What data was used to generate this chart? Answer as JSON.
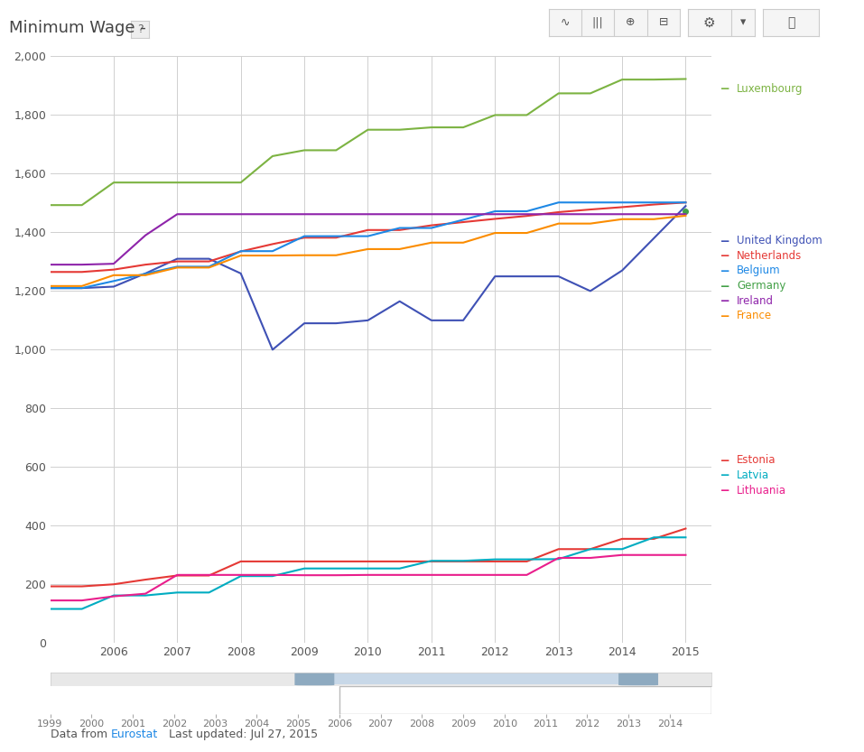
{
  "background_color": "#ffffff",
  "grid_color": "#d0d0d0",
  "ylim": [
    0,
    2000
  ],
  "yticks": [
    0,
    200,
    400,
    600,
    800,
    1000,
    1200,
    1400,
    1600,
    1800,
    2000
  ],
  "xtick_main": [
    2006,
    2007,
    2008,
    2009,
    2010,
    2011,
    2012,
    2013,
    2014,
    2015
  ],
  "xtick_full": [
    1999,
    2000,
    2001,
    2002,
    2003,
    2004,
    2005,
    2006,
    2007,
    2008,
    2009,
    2010,
    2011,
    2012,
    2013,
    2014
  ],
  "title": "Minimum Wage - ",
  "series": [
    {
      "name": "Luxembourg",
      "color": "#7cb342",
      "x": [
        2005.0,
        2005.5,
        2006.0,
        2006.5,
        2007.0,
        2007.5,
        2008.0,
        2008.5,
        2009.0,
        2009.5,
        2010.0,
        2010.5,
        2011.0,
        2011.5,
        2012.0,
        2012.5,
        2013.0,
        2013.5,
        2014.0,
        2014.5,
        2015.0
      ],
      "y": [
        1493,
        1493,
        1570,
        1570,
        1570,
        1570,
        1570,
        1660,
        1680,
        1680,
        1750,
        1750,
        1758,
        1758,
        1800,
        1800,
        1874,
        1874,
        1921,
        1921,
        1923
      ]
    },
    {
      "name": "United Kingdom",
      "color": "#3f51b5",
      "x": [
        2005.0,
        2005.5,
        2006.0,
        2006.5,
        2007.0,
        2007.5,
        2008.0,
        2008.5,
        2009.0,
        2009.5,
        2010.0,
        2010.5,
        2011.0,
        2011.5,
        2012.0,
        2012.5,
        2013.0,
        2013.5,
        2014.0,
        2014.5,
        2015.0
      ],
      "y": [
        1210,
        1210,
        1215,
        1260,
        1310,
        1310,
        1260,
        1000,
        1090,
        1090,
        1100,
        1165,
        1100,
        1100,
        1250,
        1250,
        1250,
        1200,
        1270,
        1380,
        1490
      ]
    },
    {
      "name": "Netherlands",
      "color": "#e53935",
      "x": [
        2005.0,
        2005.5,
        2006.0,
        2006.5,
        2007.0,
        2007.5,
        2008.0,
        2008.5,
        2009.0,
        2009.5,
        2010.0,
        2010.5,
        2011.0,
        2011.5,
        2012.0,
        2012.5,
        2013.0,
        2013.5,
        2014.0,
        2014.5,
        2015.0
      ],
      "y": [
        1265,
        1265,
        1273,
        1290,
        1301,
        1301,
        1335,
        1360,
        1382,
        1382,
        1408,
        1408,
        1424,
        1435,
        1446,
        1456,
        1469,
        1478,
        1486,
        1495,
        1502
      ]
    },
    {
      "name": "Belgium",
      "color": "#1e88e5",
      "x": [
        2005.0,
        2005.5,
        2006.0,
        2006.5,
        2007.0,
        2007.5,
        2008.0,
        2008.5,
        2009.0,
        2009.5,
        2010.0,
        2010.5,
        2011.0,
        2011.5,
        2012.0,
        2012.5,
        2013.0,
        2013.5,
        2014.0,
        2014.5,
        2015.0
      ],
      "y": [
        1210,
        1210,
        1234,
        1259,
        1283,
        1283,
        1336,
        1336,
        1387,
        1387,
        1387,
        1415,
        1415,
        1443,
        1472,
        1472,
        1502,
        1502,
        1502,
        1502,
        1502
      ]
    },
    {
      "name": "Germany",
      "color": "#43a047",
      "x": [
        2015.0
      ],
      "y": [
        1473
      ]
    },
    {
      "name": "Ireland",
      "color": "#8e24aa",
      "x": [
        2005.0,
        2005.5,
        2006.0,
        2006.5,
        2007.0,
        2007.5,
        2008.0,
        2008.5,
        2009.0,
        2009.5,
        2010.0,
        2010.5,
        2011.0,
        2011.5,
        2012.0,
        2012.5,
        2013.0,
        2013.5,
        2014.0,
        2014.5,
        2015.0
      ],
      "y": [
        1290,
        1290,
        1293,
        1390,
        1462,
        1462,
        1462,
        1462,
        1462,
        1462,
        1462,
        1462,
        1462,
        1462,
        1462,
        1462,
        1462,
        1462,
        1462,
        1462,
        1462
      ]
    },
    {
      "name": "France",
      "color": "#fb8c00",
      "x": [
        2005.0,
        2005.5,
        2006.0,
        2006.5,
        2007.0,
        2007.5,
        2008.0,
        2008.5,
        2009.0,
        2009.5,
        2010.0,
        2010.5,
        2011.0,
        2011.5,
        2012.0,
        2012.5,
        2013.0,
        2013.5,
        2014.0,
        2014.5,
        2015.0
      ],
      "y": [
        1217,
        1217,
        1254,
        1254,
        1280,
        1280,
        1321,
        1321,
        1322,
        1322,
        1343,
        1343,
        1365,
        1365,
        1398,
        1398,
        1430,
        1430,
        1445,
        1445,
        1457
      ]
    },
    {
      "name": "Estonia",
      "color": "#e53935",
      "x": [
        2005.0,
        2005.5,
        2006.0,
        2006.5,
        2007.0,
        2007.5,
        2008.0,
        2008.5,
        2009.0,
        2009.5,
        2010.0,
        2010.5,
        2011.0,
        2011.5,
        2012.0,
        2012.5,
        2013.0,
        2013.5,
        2014.0,
        2014.5,
        2015.0
      ],
      "y": [
        193,
        193,
        200,
        216,
        230,
        230,
        278,
        278,
        278,
        278,
        278,
        278,
        278,
        278,
        278,
        278,
        320,
        320,
        355,
        355,
        390
      ]
    },
    {
      "name": "Latvia",
      "color": "#00acc1",
      "x": [
        2005.0,
        2005.5,
        2006.0,
        2006.5,
        2007.0,
        2007.5,
        2008.0,
        2008.5,
        2009.0,
        2009.5,
        2010.0,
        2010.5,
        2011.0,
        2011.5,
        2012.0,
        2012.5,
        2013.0,
        2013.5,
        2014.0,
        2014.5,
        2015.0
      ],
      "y": [
        116,
        116,
        162,
        162,
        172,
        172,
        228,
        228,
        254,
        254,
        254,
        254,
        280,
        280,
        285,
        285,
        286,
        320,
        320,
        360,
        360
      ]
    },
    {
      "name": "Lithuania",
      "color": "#e91e8c",
      "x": [
        2005.0,
        2005.5,
        2006.0,
        2006.5,
        2007.0,
        2007.5,
        2008.0,
        2008.5,
        2009.0,
        2009.5,
        2010.0,
        2010.5,
        2011.0,
        2011.5,
        2012.0,
        2012.5,
        2013.0,
        2013.5,
        2014.0,
        2014.5,
        2015.0
      ],
      "y": [
        145,
        145,
        159,
        168,
        232,
        232,
        232,
        232,
        231,
        231,
        232,
        232,
        232,
        232,
        232,
        232,
        290,
        290,
        300,
        300,
        300
      ]
    }
  ],
  "legend_upper": [
    {
      "name": "Luxembourg",
      "color": "#7cb342",
      "yf": 0.882
    },
    {
      "name": "United Kingdom",
      "color": "#3f51b5",
      "yf": 0.68
    },
    {
      "name": "Netherlands",
      "color": "#e53935",
      "yf": 0.66
    },
    {
      "name": "Belgium",
      "color": "#1e88e5",
      "yf": 0.64
    },
    {
      "name": "Germany",
      "color": "#43a047",
      "yf": 0.62
    },
    {
      "name": "Ireland",
      "color": "#8e24aa",
      "yf": 0.6
    },
    {
      "name": "France",
      "color": "#fb8c00",
      "yf": 0.58
    }
  ],
  "legend_lower": [
    {
      "name": "Estonia",
      "color": "#e53935",
      "yf": 0.388
    },
    {
      "name": "Latvia",
      "color": "#00acc1",
      "yf": 0.368
    },
    {
      "name": "Lithuania",
      "color": "#e91e8c",
      "yf": 0.348
    }
  ]
}
